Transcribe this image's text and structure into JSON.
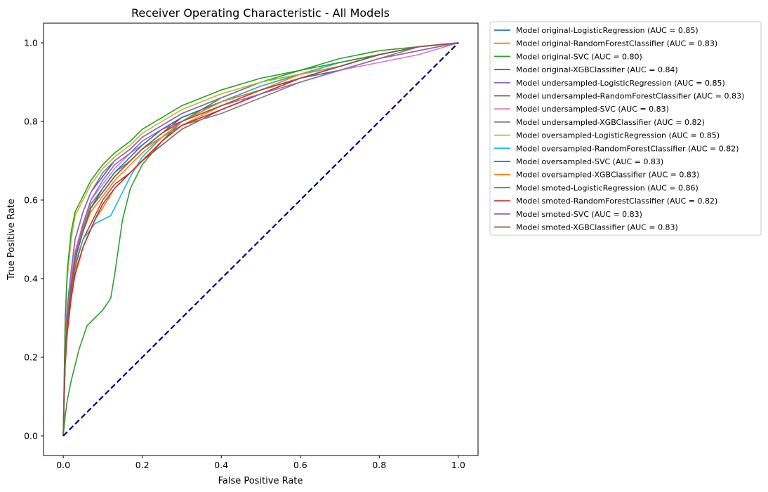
{
  "chart_data": {
    "type": "line",
    "title": "Receiver Operating Characteristic - All Models",
    "xlabel": "False Positive Rate",
    "ylabel": "True Positive Rate",
    "xlim": [
      -0.05,
      1.05
    ],
    "ylim": [
      -0.05,
      1.05
    ],
    "xticks": [
      0.0,
      0.2,
      0.4,
      0.6,
      0.8,
      1.0
    ],
    "xtick_labels": [
      "0.0",
      "0.2",
      "0.4",
      "0.6",
      "0.8",
      "1.0"
    ],
    "yticks": [
      0.0,
      0.2,
      0.4,
      0.6,
      0.8,
      1.0
    ],
    "ytick_labels": [
      "0.0",
      "0.2",
      "0.4",
      "0.6",
      "0.8",
      "1.0"
    ],
    "grid": false,
    "legend_position": "outside-upper-right",
    "diagonal": {
      "x": [
        0,
        1
      ],
      "y": [
        0,
        1
      ],
      "color": "#000080",
      "style": "dashed"
    },
    "series": [
      {
        "name": "Model original-LogisticRegression (AUC = 0.85)",
        "color": "#1f77b4",
        "x": [
          0,
          0.005,
          0.01,
          0.02,
          0.03,
          0.05,
          0.07,
          0.1,
          0.13,
          0.17,
          0.2,
          0.25,
          0.3,
          0.4,
          0.5,
          0.6,
          0.7,
          0.8,
          0.9,
          1.0
        ],
        "y": [
          0,
          0.25,
          0.33,
          0.42,
          0.5,
          0.57,
          0.62,
          0.66,
          0.7,
          0.73,
          0.76,
          0.79,
          0.82,
          0.86,
          0.9,
          0.92,
          0.94,
          0.97,
          0.99,
          1.0
        ]
      },
      {
        "name": "Model original-RandomForestClassifier (AUC = 0.83)",
        "color": "#ff7f0e",
        "x": [
          0,
          0.005,
          0.01,
          0.02,
          0.03,
          0.05,
          0.08,
          0.1,
          0.13,
          0.17,
          0.2,
          0.25,
          0.3,
          0.4,
          0.5,
          0.6,
          0.7,
          0.8,
          0.9,
          1.0
        ],
        "y": [
          0,
          0.2,
          0.28,
          0.36,
          0.42,
          0.48,
          0.55,
          0.58,
          0.63,
          0.67,
          0.7,
          0.75,
          0.79,
          0.84,
          0.88,
          0.91,
          0.94,
          0.97,
          0.99,
          1.0
        ]
      },
      {
        "name": "Model original-SVC (AUC = 0.80)",
        "color": "#2ca02c",
        "x": [
          0,
          0.005,
          0.01,
          0.02,
          0.03,
          0.04,
          0.06,
          0.08,
          0.1,
          0.12,
          0.13,
          0.14,
          0.15,
          0.17,
          0.2,
          0.25,
          0.3,
          0.4,
          0.5,
          0.6,
          0.7,
          0.8,
          0.9,
          1.0
        ],
        "y": [
          0,
          0.05,
          0.09,
          0.14,
          0.18,
          0.22,
          0.28,
          0.3,
          0.32,
          0.35,
          0.41,
          0.48,
          0.55,
          0.63,
          0.69,
          0.75,
          0.8,
          0.86,
          0.9,
          0.93,
          0.96,
          0.98,
          0.99,
          1.0
        ]
      },
      {
        "name": "Model original-XGBClassifier (AUC = 0.84)",
        "color": "#d62728",
        "x": [
          0,
          0.005,
          0.01,
          0.02,
          0.03,
          0.05,
          0.07,
          0.1,
          0.13,
          0.17,
          0.2,
          0.25,
          0.3,
          0.4,
          0.5,
          0.6,
          0.7,
          0.8,
          0.9,
          1.0
        ],
        "y": [
          0,
          0.22,
          0.3,
          0.38,
          0.45,
          0.52,
          0.58,
          0.62,
          0.66,
          0.7,
          0.73,
          0.77,
          0.81,
          0.85,
          0.89,
          0.92,
          0.95,
          0.97,
          0.99,
          1.0
        ]
      },
      {
        "name": "Model undersampled-LogisticRegression (AUC = 0.85)",
        "color": "#9467bd",
        "x": [
          0,
          0.005,
          0.01,
          0.02,
          0.03,
          0.05,
          0.07,
          0.1,
          0.13,
          0.17,
          0.2,
          0.25,
          0.3,
          0.4,
          0.5,
          0.6,
          0.7,
          0.8,
          0.9,
          1.0
        ],
        "y": [
          0,
          0.24,
          0.32,
          0.42,
          0.5,
          0.57,
          0.62,
          0.67,
          0.7,
          0.73,
          0.76,
          0.79,
          0.82,
          0.86,
          0.9,
          0.92,
          0.94,
          0.97,
          0.99,
          1.0
        ]
      },
      {
        "name": "Model undersampled-RandomForestClassifier (AUC = 0.83)",
        "color": "#8c564b",
        "x": [
          0,
          0.005,
          0.01,
          0.02,
          0.03,
          0.05,
          0.08,
          0.1,
          0.13,
          0.17,
          0.2,
          0.25,
          0.3,
          0.4,
          0.5,
          0.6,
          0.7,
          0.8,
          0.9,
          1.0
        ],
        "y": [
          0,
          0.21,
          0.28,
          0.37,
          0.43,
          0.5,
          0.56,
          0.6,
          0.64,
          0.67,
          0.7,
          0.74,
          0.78,
          0.83,
          0.87,
          0.91,
          0.94,
          0.97,
          0.99,
          1.0
        ]
      },
      {
        "name": "Model undersampled-SVC (AUC = 0.83)",
        "color": "#e377c2",
        "x": [
          0,
          0.005,
          0.01,
          0.02,
          0.03,
          0.05,
          0.07,
          0.1,
          0.13,
          0.17,
          0.2,
          0.25,
          0.3,
          0.4,
          0.5,
          0.6,
          0.7,
          0.8,
          0.9,
          1.0
        ],
        "y": [
          0,
          0.2,
          0.3,
          0.4,
          0.47,
          0.54,
          0.6,
          0.64,
          0.68,
          0.72,
          0.74,
          0.78,
          0.81,
          0.85,
          0.88,
          0.91,
          0.93,
          0.95,
          0.97,
          1.0
        ]
      },
      {
        "name": "Model undersampled-XGBClassifier (AUC = 0.82)",
        "color": "#7f7f7f",
        "x": [
          0,
          0.005,
          0.01,
          0.02,
          0.03,
          0.05,
          0.07,
          0.1,
          0.13,
          0.17,
          0.2,
          0.25,
          0.3,
          0.4,
          0.5,
          0.6,
          0.7,
          0.8,
          0.9,
          1.0
        ],
        "y": [
          0,
          0.22,
          0.3,
          0.39,
          0.46,
          0.53,
          0.59,
          0.63,
          0.67,
          0.7,
          0.73,
          0.76,
          0.79,
          0.82,
          0.86,
          0.9,
          0.93,
          0.96,
          0.99,
          1.0
        ]
      },
      {
        "name": "Model oversampled-LogisticRegression (AUC = 0.85)",
        "color": "#bcbd22",
        "x": [
          0,
          0.005,
          0.01,
          0.02,
          0.03,
          0.05,
          0.07,
          0.1,
          0.13,
          0.17,
          0.2,
          0.25,
          0.3,
          0.4,
          0.5,
          0.6,
          0.7,
          0.8,
          0.9,
          1.0
        ],
        "y": [
          0,
          0.3,
          0.4,
          0.5,
          0.56,
          0.6,
          0.64,
          0.68,
          0.71,
          0.74,
          0.77,
          0.8,
          0.83,
          0.87,
          0.9,
          0.92,
          0.95,
          0.97,
          0.99,
          1.0
        ]
      },
      {
        "name": "Model oversampled-RandomForestClassifier (AUC = 0.82)",
        "color": "#17becf",
        "x": [
          0,
          0.005,
          0.01,
          0.02,
          0.03,
          0.05,
          0.08,
          0.1,
          0.12,
          0.14,
          0.17,
          0.2,
          0.25,
          0.3,
          0.4,
          0.5,
          0.6,
          0.7,
          0.8,
          0.9,
          1.0
        ],
        "y": [
          0,
          0.22,
          0.3,
          0.38,
          0.44,
          0.5,
          0.54,
          0.55,
          0.56,
          0.6,
          0.66,
          0.71,
          0.76,
          0.8,
          0.85,
          0.89,
          0.92,
          0.95,
          0.97,
          0.99,
          1.0
        ]
      },
      {
        "name": "Model oversampled-SVC (AUC = 0.83)",
        "color": "#1f77b4",
        "x": [
          0,
          0.005,
          0.01,
          0.02,
          0.03,
          0.05,
          0.07,
          0.1,
          0.13,
          0.17,
          0.2,
          0.25,
          0.3,
          0.4,
          0.5,
          0.6,
          0.7,
          0.8,
          0.9,
          1.0
        ],
        "y": [
          0,
          0.21,
          0.29,
          0.38,
          0.45,
          0.52,
          0.58,
          0.63,
          0.67,
          0.71,
          0.74,
          0.78,
          0.81,
          0.85,
          0.88,
          0.91,
          0.93,
          0.96,
          0.98,
          1.0
        ]
      },
      {
        "name": "Model oversampled-XGBClassifier (AUC = 0.83)",
        "color": "#ff7f0e",
        "x": [
          0,
          0.005,
          0.01,
          0.02,
          0.03,
          0.05,
          0.07,
          0.1,
          0.13,
          0.17,
          0.2,
          0.25,
          0.3,
          0.4,
          0.5,
          0.6,
          0.7,
          0.8,
          0.9,
          1.0
        ],
        "y": [
          0,
          0.22,
          0.3,
          0.38,
          0.45,
          0.52,
          0.57,
          0.61,
          0.65,
          0.69,
          0.72,
          0.76,
          0.8,
          0.85,
          0.88,
          0.92,
          0.94,
          0.97,
          0.99,
          1.0
        ]
      },
      {
        "name": "Model smoted-LogisticRegression (AUC = 0.86)",
        "color": "#2ca02c",
        "x": [
          0,
          0.005,
          0.01,
          0.02,
          0.03,
          0.05,
          0.07,
          0.1,
          0.13,
          0.17,
          0.2,
          0.25,
          0.3,
          0.4,
          0.5,
          0.6,
          0.7,
          0.8,
          0.9,
          1.0
        ],
        "y": [
          0,
          0.3,
          0.42,
          0.52,
          0.57,
          0.61,
          0.65,
          0.69,
          0.72,
          0.75,
          0.78,
          0.81,
          0.84,
          0.88,
          0.91,
          0.93,
          0.95,
          0.97,
          0.99,
          1.0
        ]
      },
      {
        "name": "Model smoted-RandomForestClassifier (AUC = 0.82)",
        "color": "#d62728",
        "x": [
          0,
          0.005,
          0.01,
          0.02,
          0.03,
          0.05,
          0.08,
          0.1,
          0.13,
          0.17,
          0.2,
          0.25,
          0.3,
          0.4,
          0.5,
          0.6,
          0.7,
          0.8,
          0.9,
          1.0
        ],
        "y": [
          0,
          0.18,
          0.26,
          0.35,
          0.41,
          0.48,
          0.55,
          0.59,
          0.63,
          0.67,
          0.7,
          0.75,
          0.79,
          0.83,
          0.87,
          0.91,
          0.94,
          0.97,
          0.99,
          1.0
        ]
      },
      {
        "name": "Model smoted-SVC (AUC = 0.83)",
        "color": "#9467bd",
        "x": [
          0,
          0.005,
          0.01,
          0.02,
          0.03,
          0.05,
          0.07,
          0.1,
          0.13,
          0.17,
          0.2,
          0.25,
          0.3,
          0.4,
          0.5,
          0.6,
          0.7,
          0.8,
          0.9,
          1.0
        ],
        "y": [
          0,
          0.2,
          0.29,
          0.39,
          0.46,
          0.54,
          0.6,
          0.65,
          0.69,
          0.72,
          0.75,
          0.78,
          0.8,
          0.84,
          0.87,
          0.9,
          0.93,
          0.96,
          0.98,
          1.0
        ]
      },
      {
        "name": "Model smoted-XGBClassifier (AUC = 0.83)",
        "color": "#8c564b",
        "x": [
          0,
          0.005,
          0.01,
          0.02,
          0.03,
          0.05,
          0.07,
          0.1,
          0.13,
          0.17,
          0.2,
          0.25,
          0.3,
          0.4,
          0.5,
          0.6,
          0.7,
          0.8,
          0.9,
          1.0
        ],
        "y": [
          0,
          0.21,
          0.29,
          0.38,
          0.45,
          0.52,
          0.58,
          0.62,
          0.66,
          0.7,
          0.73,
          0.77,
          0.8,
          0.84,
          0.88,
          0.91,
          0.94,
          0.97,
          0.99,
          1.0
        ]
      }
    ]
  }
}
